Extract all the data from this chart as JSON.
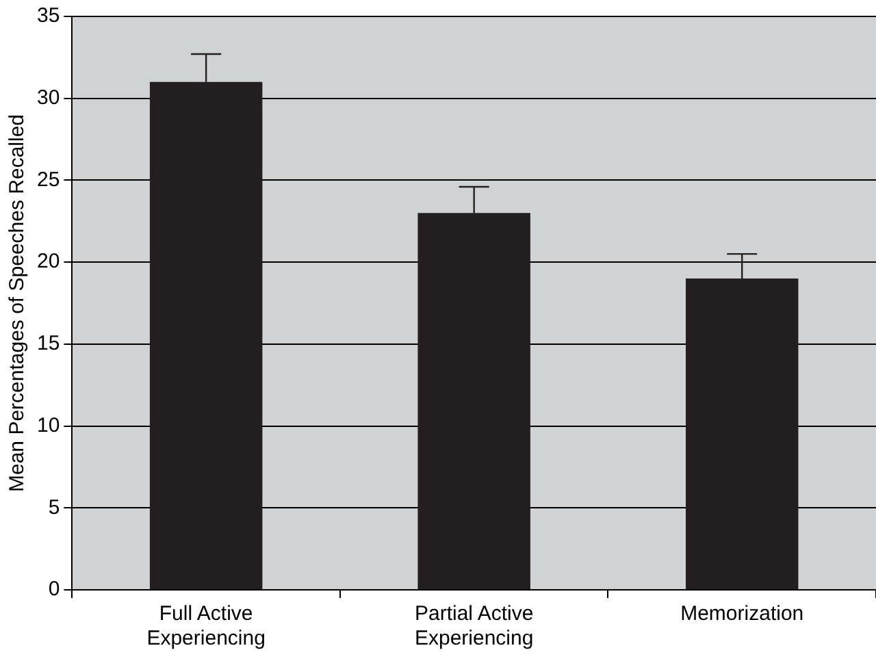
{
  "chart_data": {
    "type": "bar",
    "ylabel": "Mean Percentages of Speeches Recalled",
    "categories": [
      "Full Active Experiencing",
      "Partial Active Experiencing",
      "Memorization"
    ],
    "values": [
      31.0,
      23.0,
      19.0
    ],
    "errors": [
      [
        31.0,
        32.7
      ],
      [
        23.0,
        24.6
      ],
      [
        19.0,
        20.5
      ]
    ],
    "color": "#231f20",
    "ylim": [
      0,
      35
    ],
    "yticks": [
      0,
      5,
      10,
      15,
      20,
      25,
      30,
      35
    ],
    "grid": "y",
    "legend": false
  }
}
